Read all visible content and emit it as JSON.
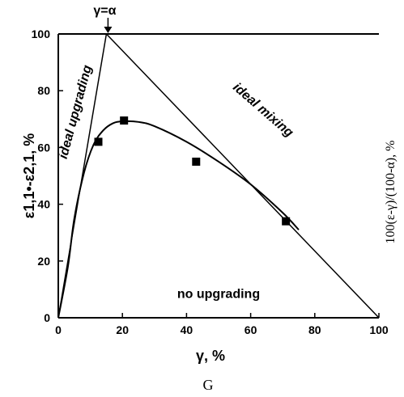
{
  "chart_data": {
    "type": "line",
    "panel_label": "G",
    "xlabel": "γ, %",
    "ylabel_left": "ε1,1•-ε2,1, %",
    "ylabel_right": "100(ε-γ)/(100-α), %",
    "xlim": [
      0,
      100
    ],
    "ylim": [
      0,
      100
    ],
    "x_ticks": [
      0,
      20,
      40,
      60,
      80,
      100
    ],
    "y_ticks": [
      0,
      20,
      40,
      60,
      80,
      100
    ],
    "grid": false,
    "top_marker": {
      "text": "γ=α",
      "x": 15
    },
    "series": [
      {
        "name": "ideal upgrading",
        "type": "line",
        "x": [
          0,
          15
        ],
        "y": [
          0,
          100
        ]
      },
      {
        "name": "ideal mixing",
        "type": "line",
        "x": [
          15,
          100
        ],
        "y": [
          100,
          0
        ]
      },
      {
        "name": "",
        "type": "curve",
        "x": [
          0,
          3,
          5,
          8,
          11,
          14,
          17,
          20,
          25,
          30,
          40,
          50,
          60,
          70,
          75
        ],
        "y": [
          0,
          18,
          35,
          51,
          61,
          66,
          68.5,
          69.2,
          69,
          67.5,
          62,
          55,
          47,
          37,
          31
        ]
      },
      {
        "name": "",
        "type": "points",
        "x": [
          12.5,
          20.5,
          43,
          71
        ],
        "y": [
          62,
          69.5,
          55,
          34
        ]
      }
    ],
    "annotations": [
      {
        "text": "ideal upgrading",
        "x": 7,
        "y": 75
      },
      {
        "text": "ideal mixing",
        "x": 55,
        "y": 75
      },
      {
        "text": "no upgrading",
        "x": 50,
        "y": 7
      }
    ]
  }
}
